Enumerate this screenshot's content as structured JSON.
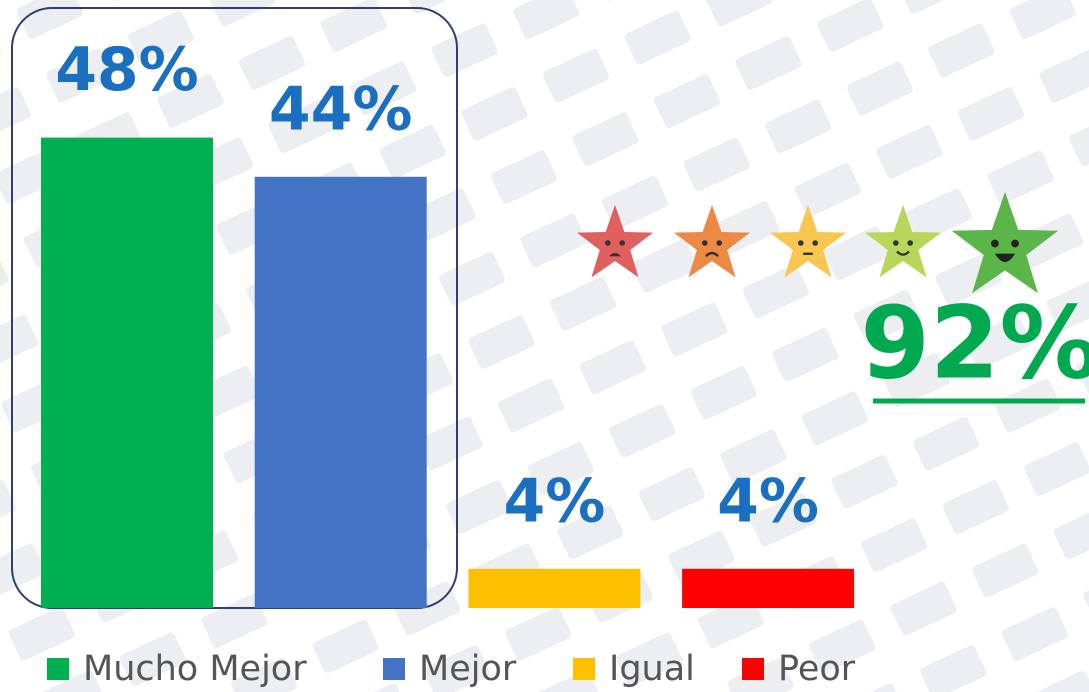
{
  "chart_data": {
    "type": "bar",
    "categories": [
      "Mucho Mejor",
      "Mejor",
      "Igual",
      "Peor"
    ],
    "values": [
      48,
      44,
      4,
      4
    ],
    "value_labels": [
      "48%",
      "44%",
      "4%",
      "4%"
    ],
    "colors": [
      "#00b050",
      "#4472c4",
      "#ffc000",
      "#ff0000"
    ],
    "annotation": "92%"
  }
}
